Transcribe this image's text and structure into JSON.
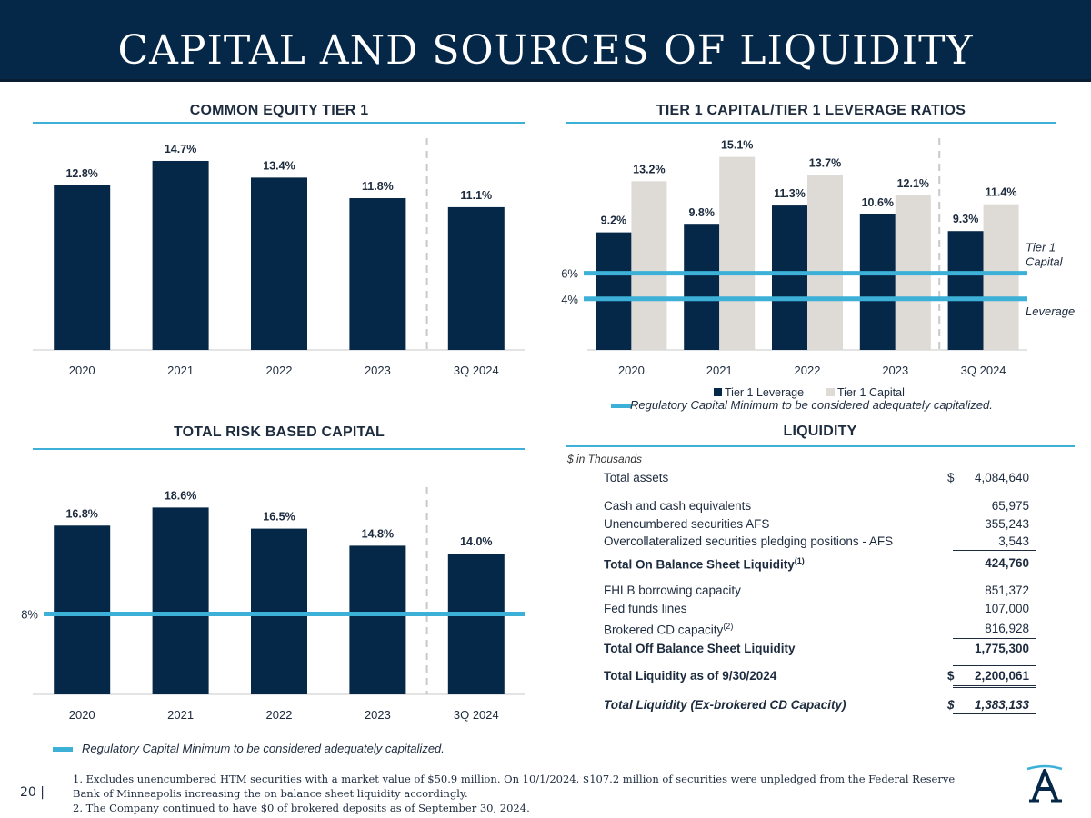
{
  "page": {
    "title": "CAPITAL AND SOURCES OF LIQUIDITY",
    "page_number": "20 |",
    "footnotes": [
      "1. Excludes unencumbered HTM securities with a market value of $50.9 million. On 10/1/2024, $107.2 million of securities were unpledged from the Federal Reserve Bank of Minneapolis increasing the on balance sheet liquidity accordingly.",
      "2. The Company continued to have $0 of brokered deposits as of September 30, 2024."
    ],
    "regulatory_legend": "Regulatory Capital Minimum to be considered adequately capitalized."
  },
  "colors": {
    "navy": "#052748",
    "gray": "#dedbd7",
    "accent": "#3cb0d6",
    "text": "#1d2b3e",
    "divider": "#c9c9c9"
  },
  "chart_data": [
    {
      "id": "cet1",
      "type": "bar",
      "title": "COMMON EQUITY TIER 1",
      "categories": [
        "2020",
        "2021",
        "2022",
        "2023",
        "3Q 2024"
      ],
      "series": [
        {
          "values": [
            12.8,
            14.7,
            13.4,
            11.8,
            11.1
          ],
          "labels": [
            "12.8%",
            "14.7%",
            "13.4%",
            "11.8%",
            "11.1%"
          ],
          "color": "#052748"
        }
      ],
      "ylim": [
        0,
        15.9
      ]
    },
    {
      "id": "leverage",
      "type": "bar",
      "title": "TIER 1 CAPITAL/TIER 1 LEVERAGE RATIOS",
      "categories": [
        "2020",
        "2021",
        "2022",
        "2023",
        "3Q 2024"
      ],
      "series": [
        {
          "name": "Tier 1 Leverage",
          "values": [
            9.2,
            9.8,
            11.3,
            10.6,
            9.3
          ],
          "labels": [
            "9.2%",
            "9.8%",
            "11.3%",
            "10.6%",
            "9.3%"
          ],
          "color": "#052748"
        },
        {
          "name": "Tier 1 Capital",
          "values": [
            13.2,
            15.1,
            13.7,
            12.1,
            11.4
          ],
          "labels": [
            "13.2%",
            "15.1%",
            "13.7%",
            "12.1%",
            "11.4%"
          ],
          "color": "#dedbd7"
        }
      ],
      "reference_lines": [
        {
          "value": 6,
          "label": "6%",
          "name_line1": "Tier 1",
          "name_line2": "Capital"
        },
        {
          "value": 4,
          "label": "4%",
          "name_line1": "Leverage",
          "name_line2": ""
        }
      ],
      "legend_position": "bottom",
      "ylim": [
        0,
        16
      ]
    },
    {
      "id": "trbc",
      "type": "bar",
      "title": "TOTAL RISK BASED CAPITAL",
      "categories": [
        "2020",
        "2021",
        "2022",
        "2023",
        "3Q 2024"
      ],
      "series": [
        {
          "values": [
            16.8,
            18.6,
            16.5,
            14.8,
            14.0
          ],
          "labels": [
            "16.8%",
            "18.6%",
            "16.5%",
            "14.8%",
            "14.0%"
          ],
          "color": "#052748"
        }
      ],
      "reference_lines": [
        {
          "value": 8,
          "label": "8%"
        }
      ],
      "ylim": [
        0,
        19.9
      ]
    }
  ],
  "liquidity": {
    "title": "LIQUIDITY",
    "units": "$ in Thousands",
    "rows": [
      {
        "label": "Total assets",
        "dollar": "$",
        "value": "4,084,640"
      },
      {
        "label": "Cash and cash equivalents",
        "dollar": "",
        "value": "65,975"
      },
      {
        "label": "Unencumbered securities AFS",
        "dollar": "",
        "value": "355,243"
      },
      {
        "label": "Overcollateralized securities pledging positions - AFS",
        "dollar": "",
        "value": "3,543"
      },
      {
        "label": "Total On Balance Sheet Liquidity",
        "sup": "(1)",
        "dollar": "",
        "value": "424,760"
      },
      {
        "label": "FHLB borrowing capacity",
        "dollar": "",
        "value": "851,372"
      },
      {
        "label": "Fed funds lines",
        "dollar": "",
        "value": "107,000"
      },
      {
        "label": "Brokered CD capacity",
        "sup": "(2)",
        "dollar": "",
        "value": "816,928"
      },
      {
        "label": "Total Off Balance Sheet Liquidity",
        "dollar": "",
        "value": "1,775,300"
      },
      {
        "label": "Total Liquidity as of 9/30/2024",
        "dollar": "$",
        "value": "2,200,061"
      },
      {
        "label": "Total Liquidity (Ex-brokered CD Capacity)",
        "dollar": "$",
        "value": "1,383,133"
      }
    ]
  }
}
